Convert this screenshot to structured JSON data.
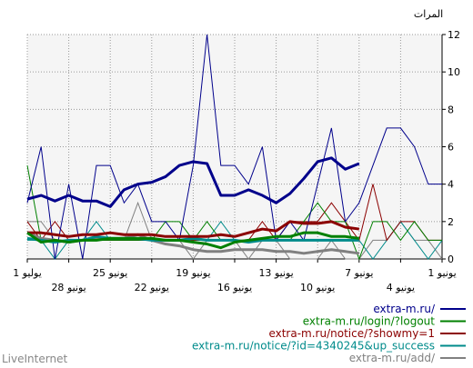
{
  "chart_data": {
    "type": "line",
    "ylabel": "المرات",
    "ylim": [
      0,
      12
    ],
    "yticks": [
      0,
      2,
      4,
      6,
      8,
      10,
      12
    ],
    "grid": true,
    "x_tick_labels": [
      "1 يوليو",
      "28 يونيو",
      "25 يونيو",
      "22 يونيو",
      "19 يونيو",
      "16 يونيو",
      "13 يونيو",
      "10 يونيو",
      "7 يونيو",
      "4 يونيو",
      "1 يونيو"
    ],
    "x_days": [
      0,
      3,
      6,
      9,
      12,
      15,
      18,
      21,
      24,
      27,
      30
    ],
    "x_range": [
      0,
      30
    ],
    "series": [
      {
        "name": "extra-m.ru/",
        "color": "#00008b",
        "daily": [
          3,
          6,
          0,
          4,
          0,
          5,
          5,
          3,
          4,
          2,
          2,
          1,
          5,
          12,
          5,
          5,
          4,
          6,
          1,
          2,
          1,
          4,
          7,
          2,
          3,
          5,
          7,
          7,
          6,
          4,
          4
        ],
        "smooth_days": [
          0,
          1,
          2,
          3,
          4,
          5,
          6,
          7,
          8,
          9,
          10,
          11,
          12,
          13,
          14,
          15,
          16,
          17,
          18,
          19,
          20,
          21,
          22,
          23,
          24
        ],
        "smooth": [
          3.2,
          3.4,
          3.1,
          3.4,
          3.1,
          3.1,
          2.8,
          3.7,
          4.0,
          4.1,
          4.4,
          5.0,
          5.2,
          5.1,
          3.4,
          3.4,
          3.7,
          3.4,
          3.0,
          3.5,
          4.3,
          5.2,
          5.4,
          4.8,
          5.1
        ]
      },
      {
        "name": "extra-m.ru/login/?logout",
        "color": "#008000",
        "daily": [
          5,
          1,
          1,
          1,
          1,
          1,
          1,
          1,
          1,
          1,
          2,
          2,
          1,
          2,
          1,
          1,
          1,
          1,
          1,
          1,
          2,
          3,
          2,
          2,
          0,
          2,
          2,
          1,
          2,
          1,
          1
        ],
        "smooth_days": [
          0,
          1,
          2,
          3,
          4,
          5,
          6,
          7,
          8,
          9,
          10,
          11,
          12,
          13,
          14,
          15,
          16,
          17,
          18,
          19,
          20,
          21,
          22,
          23,
          24
        ],
        "smooth": [
          1.4,
          0.9,
          1.0,
          0.9,
          1.0,
          1.0,
          1.1,
          1.1,
          1.1,
          1.1,
          1.0,
          1.0,
          0.9,
          0.8,
          0.6,
          0.9,
          1.0,
          1.1,
          1.2,
          1.2,
          1.4,
          1.4,
          1.2,
          1.2,
          1.1
        ]
      },
      {
        "name": "extra-m.ru/notice/?showmy=1",
        "color": "#8b0000",
        "daily": [
          2,
          1,
          2,
          1,
          1,
          1,
          1,
          1,
          1,
          1,
          1,
          1,
          1,
          1,
          1,
          1,
          1,
          2,
          1,
          2,
          2,
          2,
          3,
          2,
          1,
          4,
          1,
          2,
          2,
          1,
          1
        ],
        "smooth_days": [
          0,
          1,
          2,
          3,
          4,
          5,
          6,
          7,
          8,
          9,
          10,
          11,
          12,
          13,
          14,
          15,
          16,
          17,
          18,
          19,
          20,
          21,
          22,
          23,
          24
        ],
        "smooth": [
          1.4,
          1.4,
          1.3,
          1.2,
          1.3,
          1.3,
          1.4,
          1.3,
          1.3,
          1.3,
          1.2,
          1.2,
          1.2,
          1.2,
          1.3,
          1.2,
          1.4,
          1.6,
          1.5,
          2.0,
          1.9,
          1.9,
          2.0,
          1.7,
          1.6
        ]
      },
      {
        "name": "extra-m.ru/notice/?id=4340245&up_success",
        "color": "#008b8b",
        "daily": [
          1,
          1,
          0,
          1,
          1,
          2,
          1,
          1,
          1,
          1,
          1,
          1,
          1,
          1,
          2,
          1,
          1,
          1,
          1,
          1,
          1,
          1,
          1,
          1,
          1,
          0,
          1,
          2,
          1,
          0,
          1
        ],
        "smooth_days": [
          0,
          1,
          2,
          3,
          4,
          5,
          6,
          7,
          8,
          9,
          10,
          11,
          12,
          13,
          14,
          15,
          16,
          17,
          18,
          19,
          20,
          21,
          22,
          23,
          24
        ],
        "smooth": [
          1.1,
          1.0,
          0.9,
          1.0,
          1.0,
          1.2,
          1.1,
          1.1,
          1.1,
          1.0,
          1.0,
          1.0,
          1.1,
          1.0,
          1.0,
          1.0,
          0.9,
          1.0,
          1.0,
          1.0,
          1.0,
          1.0,
          1.0,
          1.0,
          1.0
        ]
      },
      {
        "name": "extra-m.ru/add/",
        "color": "#808080",
        "daily": [
          2,
          2,
          1,
          1,
          1,
          1,
          1,
          1,
          3,
          1,
          1,
          1,
          0,
          1,
          1,
          1,
          0,
          1,
          1,
          0,
          0,
          0,
          1,
          0,
          0,
          1,
          1,
          2,
          1,
          1,
          0
        ],
        "smooth_days": [
          0,
          1,
          2,
          3,
          4,
          5,
          6,
          7,
          8,
          9,
          10,
          11,
          12,
          13,
          14,
          15,
          16,
          17,
          18,
          19,
          20,
          21,
          22,
          23,
          24
        ],
        "smooth": [
          1.4,
          1.1,
          1.0,
          0.9,
          1.0,
          1.1,
          1.1,
          1.1,
          1.3,
          1.0,
          0.8,
          0.7,
          0.5,
          0.4,
          0.4,
          0.5,
          0.5,
          0.5,
          0.4,
          0.4,
          0.3,
          0.4,
          0.5,
          0.4,
          0.3
        ]
      }
    ]
  },
  "footer": {
    "brand": "LiveInternet"
  }
}
